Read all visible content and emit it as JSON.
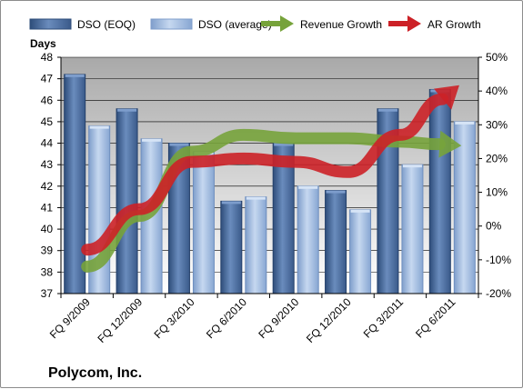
{
  "chart_data": {
    "type": "bar",
    "company": "Polycom, Inc.",
    "ylabel_left": "Days",
    "categories": [
      "FQ 9/2009",
      "FQ 12/2009",
      "FQ 3/2010",
      "FQ 6/2010",
      "FQ 9/2010",
      "FQ 12/2010",
      "FQ 3/2011",
      "FQ 6/2011"
    ],
    "series": [
      {
        "name": "DSO (EOQ)",
        "axis": "left",
        "kind": "bar",
        "color": "#4a6a9a",
        "values": [
          47.2,
          45.6,
          44.0,
          41.3,
          44.0,
          41.8,
          45.6,
          46.5
        ]
      },
      {
        "name": "DSO (average)",
        "axis": "left",
        "kind": "bar",
        "color": "#9ab6dc",
        "values": [
          44.8,
          44.2,
          43.6,
          41.5,
          42.0,
          40.9,
          43.0,
          45.0
        ]
      },
      {
        "name": "Revenue Growth",
        "axis": "right",
        "kind": "arrow",
        "color": "#77a33b",
        "values": [
          -12,
          3,
          22,
          27,
          26,
          26,
          25,
          24
        ]
      },
      {
        "name": "AR Growth",
        "axis": "right",
        "kind": "arrow",
        "color": "#cc2127",
        "values": [
          -7,
          5,
          19,
          20,
          19,
          16,
          27,
          40
        ]
      }
    ],
    "left_axis": {
      "min": 37,
      "max": 48,
      "step": 1,
      "ticks": [
        "37",
        "38",
        "39",
        "40",
        "41",
        "42",
        "43",
        "44",
        "45",
        "46",
        "47",
        "48"
      ]
    },
    "right_axis": {
      "min": -20,
      "max": 50,
      "step": 10,
      "ticks": [
        "-20%",
        "-10%",
        "0%",
        "10%",
        "20%",
        "30%",
        "40%",
        "50%"
      ]
    },
    "legend_position": "top",
    "grid": true
  }
}
